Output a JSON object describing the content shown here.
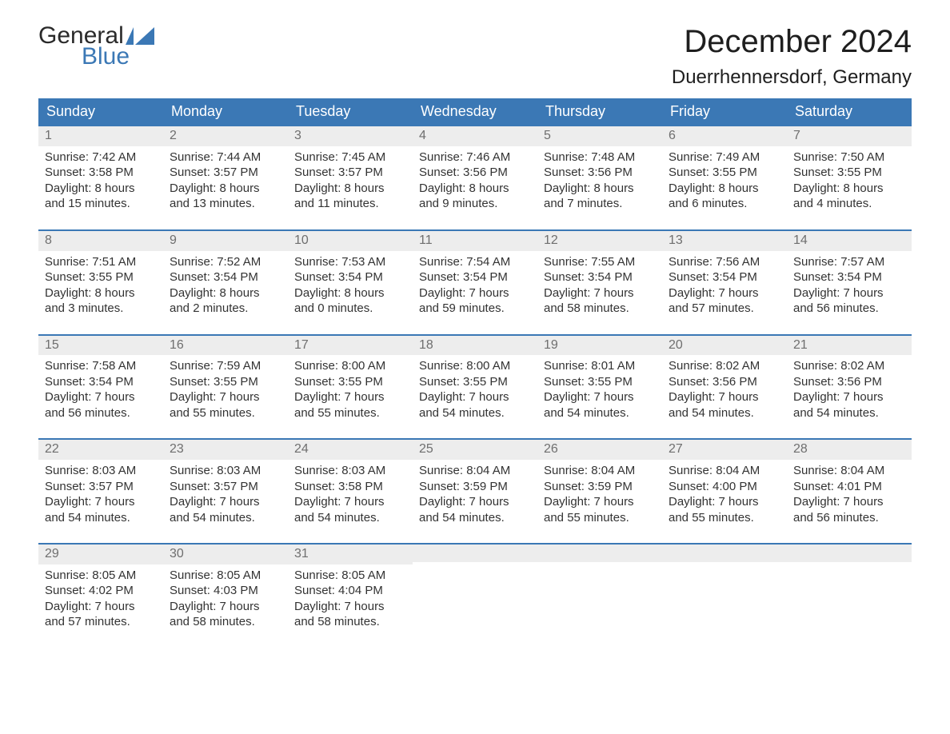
{
  "logo": {
    "word1": "General",
    "word2": "Blue",
    "brand_color": "#3b78b5"
  },
  "title": "December 2024",
  "location": "Duerrhennersdorf, Germany",
  "colors": {
    "header_bg": "#3b78b5",
    "header_text": "#ffffff",
    "daynum_bg": "#ededed",
    "daynum_text": "#6f6f6f",
    "body_text": "#333333",
    "page_bg": "#ffffff",
    "week_border": "#3b78b5"
  },
  "fonts": {
    "title_size": 40,
    "location_size": 24,
    "weekday_size": 18,
    "body_size": 15
  },
  "weekdays": [
    "Sunday",
    "Monday",
    "Tuesday",
    "Wednesday",
    "Thursday",
    "Friday",
    "Saturday"
  ],
  "weeks": [
    [
      {
        "num": "1",
        "sunrise": "Sunrise: 7:42 AM",
        "sunset": "Sunset: 3:58 PM",
        "day1": "Daylight: 8 hours",
        "day2": "and 15 minutes."
      },
      {
        "num": "2",
        "sunrise": "Sunrise: 7:44 AM",
        "sunset": "Sunset: 3:57 PM",
        "day1": "Daylight: 8 hours",
        "day2": "and 13 minutes."
      },
      {
        "num": "3",
        "sunrise": "Sunrise: 7:45 AM",
        "sunset": "Sunset: 3:57 PM",
        "day1": "Daylight: 8 hours",
        "day2": "and 11 minutes."
      },
      {
        "num": "4",
        "sunrise": "Sunrise: 7:46 AM",
        "sunset": "Sunset: 3:56 PM",
        "day1": "Daylight: 8 hours",
        "day2": "and 9 minutes."
      },
      {
        "num": "5",
        "sunrise": "Sunrise: 7:48 AM",
        "sunset": "Sunset: 3:56 PM",
        "day1": "Daylight: 8 hours",
        "day2": "and 7 minutes."
      },
      {
        "num": "6",
        "sunrise": "Sunrise: 7:49 AM",
        "sunset": "Sunset: 3:55 PM",
        "day1": "Daylight: 8 hours",
        "day2": "and 6 minutes."
      },
      {
        "num": "7",
        "sunrise": "Sunrise: 7:50 AM",
        "sunset": "Sunset: 3:55 PM",
        "day1": "Daylight: 8 hours",
        "day2": "and 4 minutes."
      }
    ],
    [
      {
        "num": "8",
        "sunrise": "Sunrise: 7:51 AM",
        "sunset": "Sunset: 3:55 PM",
        "day1": "Daylight: 8 hours",
        "day2": "and 3 minutes."
      },
      {
        "num": "9",
        "sunrise": "Sunrise: 7:52 AM",
        "sunset": "Sunset: 3:54 PM",
        "day1": "Daylight: 8 hours",
        "day2": "and 2 minutes."
      },
      {
        "num": "10",
        "sunrise": "Sunrise: 7:53 AM",
        "sunset": "Sunset: 3:54 PM",
        "day1": "Daylight: 8 hours",
        "day2": "and 0 minutes."
      },
      {
        "num": "11",
        "sunrise": "Sunrise: 7:54 AM",
        "sunset": "Sunset: 3:54 PM",
        "day1": "Daylight: 7 hours",
        "day2": "and 59 minutes."
      },
      {
        "num": "12",
        "sunrise": "Sunrise: 7:55 AM",
        "sunset": "Sunset: 3:54 PM",
        "day1": "Daylight: 7 hours",
        "day2": "and 58 minutes."
      },
      {
        "num": "13",
        "sunrise": "Sunrise: 7:56 AM",
        "sunset": "Sunset: 3:54 PM",
        "day1": "Daylight: 7 hours",
        "day2": "and 57 minutes."
      },
      {
        "num": "14",
        "sunrise": "Sunrise: 7:57 AM",
        "sunset": "Sunset: 3:54 PM",
        "day1": "Daylight: 7 hours",
        "day2": "and 56 minutes."
      }
    ],
    [
      {
        "num": "15",
        "sunrise": "Sunrise: 7:58 AM",
        "sunset": "Sunset: 3:54 PM",
        "day1": "Daylight: 7 hours",
        "day2": "and 56 minutes."
      },
      {
        "num": "16",
        "sunrise": "Sunrise: 7:59 AM",
        "sunset": "Sunset: 3:55 PM",
        "day1": "Daylight: 7 hours",
        "day2": "and 55 minutes."
      },
      {
        "num": "17",
        "sunrise": "Sunrise: 8:00 AM",
        "sunset": "Sunset: 3:55 PM",
        "day1": "Daylight: 7 hours",
        "day2": "and 55 minutes."
      },
      {
        "num": "18",
        "sunrise": "Sunrise: 8:00 AM",
        "sunset": "Sunset: 3:55 PM",
        "day1": "Daylight: 7 hours",
        "day2": "and 54 minutes."
      },
      {
        "num": "19",
        "sunrise": "Sunrise: 8:01 AM",
        "sunset": "Sunset: 3:55 PM",
        "day1": "Daylight: 7 hours",
        "day2": "and 54 minutes."
      },
      {
        "num": "20",
        "sunrise": "Sunrise: 8:02 AM",
        "sunset": "Sunset: 3:56 PM",
        "day1": "Daylight: 7 hours",
        "day2": "and 54 minutes."
      },
      {
        "num": "21",
        "sunrise": "Sunrise: 8:02 AM",
        "sunset": "Sunset: 3:56 PM",
        "day1": "Daylight: 7 hours",
        "day2": "and 54 minutes."
      }
    ],
    [
      {
        "num": "22",
        "sunrise": "Sunrise: 8:03 AM",
        "sunset": "Sunset: 3:57 PM",
        "day1": "Daylight: 7 hours",
        "day2": "and 54 minutes."
      },
      {
        "num": "23",
        "sunrise": "Sunrise: 8:03 AM",
        "sunset": "Sunset: 3:57 PM",
        "day1": "Daylight: 7 hours",
        "day2": "and 54 minutes."
      },
      {
        "num": "24",
        "sunrise": "Sunrise: 8:03 AM",
        "sunset": "Sunset: 3:58 PM",
        "day1": "Daylight: 7 hours",
        "day2": "and 54 minutes."
      },
      {
        "num": "25",
        "sunrise": "Sunrise: 8:04 AM",
        "sunset": "Sunset: 3:59 PM",
        "day1": "Daylight: 7 hours",
        "day2": "and 54 minutes."
      },
      {
        "num": "26",
        "sunrise": "Sunrise: 8:04 AM",
        "sunset": "Sunset: 3:59 PM",
        "day1": "Daylight: 7 hours",
        "day2": "and 55 minutes."
      },
      {
        "num": "27",
        "sunrise": "Sunrise: 8:04 AM",
        "sunset": "Sunset: 4:00 PM",
        "day1": "Daylight: 7 hours",
        "day2": "and 55 minutes."
      },
      {
        "num": "28",
        "sunrise": "Sunrise: 8:04 AM",
        "sunset": "Sunset: 4:01 PM",
        "day1": "Daylight: 7 hours",
        "day2": "and 56 minutes."
      }
    ],
    [
      {
        "num": "29",
        "sunrise": "Sunrise: 8:05 AM",
        "sunset": "Sunset: 4:02 PM",
        "day1": "Daylight: 7 hours",
        "day2": "and 57 minutes."
      },
      {
        "num": "30",
        "sunrise": "Sunrise: 8:05 AM",
        "sunset": "Sunset: 4:03 PM",
        "day1": "Daylight: 7 hours",
        "day2": "and 58 minutes."
      },
      {
        "num": "31",
        "sunrise": "Sunrise: 8:05 AM",
        "sunset": "Sunset: 4:04 PM",
        "day1": "Daylight: 7 hours",
        "day2": "and 58 minutes."
      },
      null,
      null,
      null,
      null
    ]
  ]
}
